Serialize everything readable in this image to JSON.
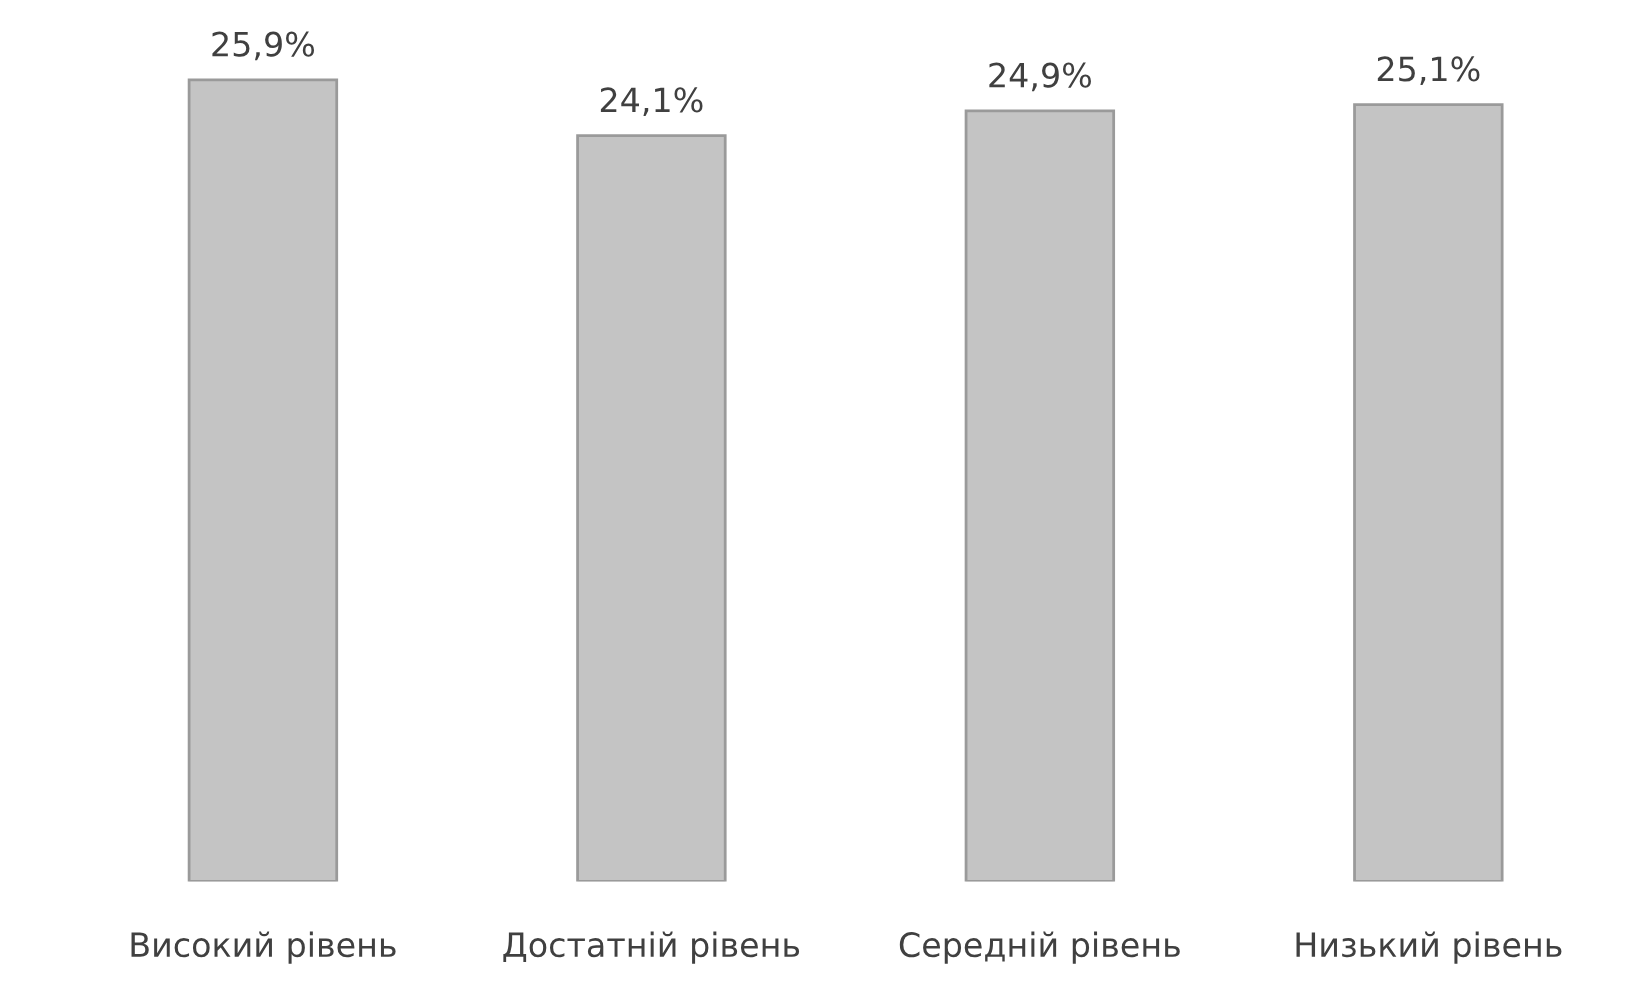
{
  "chart_data": {
    "type": "bar",
    "categories": [
      "Високий рівень",
      "Достатній рівень",
      "Середній рівень",
      "Низький рівень"
    ],
    "values": [
      25.9,
      24.1,
      24.9,
      25.1
    ],
    "value_labels": [
      "25,9%",
      "24,1%",
      "24,9%",
      "25,1%"
    ],
    "color": "#c4c4c4",
    "grid": false
  }
}
